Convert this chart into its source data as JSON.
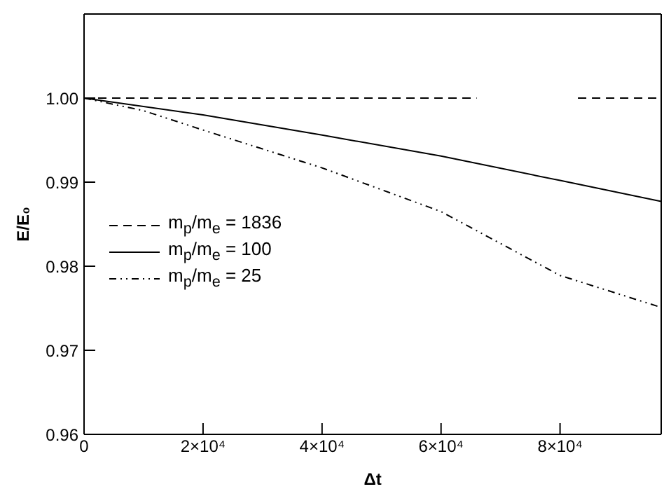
{
  "chart_data": {
    "type": "line",
    "xlabel": "Δt",
    "ylabel": "E/E₀",
    "xlim": [
      0,
      97000
    ],
    "ylim": [
      0.96,
      1.01
    ],
    "xticks": [
      0,
      {
        "value": 20000,
        "label": "2×10⁴"
      },
      {
        "value": 40000,
        "label": "4×10⁴"
      },
      {
        "value": 60000,
        "label": "6×10⁴"
      },
      {
        "value": 80000,
        "label": "8×10⁴"
      }
    ],
    "yticks": [
      0.96,
      0.97,
      0.98,
      0.99,
      {
        "value": 1,
        "label": "1.00"
      }
    ],
    "legend": "left",
    "marker": "none",
    "series": [
      {
        "name": "m$_{p}$/m$_{e}$ = 1836",
        "color": "#000000",
        "line_style": "dashed",
        "x": [
          0,
          66000,
          74000,
          83000,
          97000
        ],
        "values": [
          1.0,
          1.0,
          null,
          1.0,
          1.0
        ]
      },
      {
        "name": "m$_{p}$/m$_{e}$ = 100",
        "color": "#000000",
        "line_style": "solid",
        "x": [
          0,
          20000,
          40000,
          60000,
          80000,
          97000
        ],
        "values": [
          1.0,
          0.998,
          0.9956,
          0.9931,
          0.9902,
          0.9877
        ]
      },
      {
        "name": "m$_{p}$/m$_{e}$ = 25",
        "color": "#000000",
        "line_style": "dotted",
        "x": [
          0,
          10000,
          20000,
          40000,
          60000,
          80000,
          97000
        ],
        "values": [
          1.0,
          0.9985,
          0.9962,
          0.9917,
          0.9865,
          0.9789,
          0.9751
        ]
      }
    ]
  }
}
